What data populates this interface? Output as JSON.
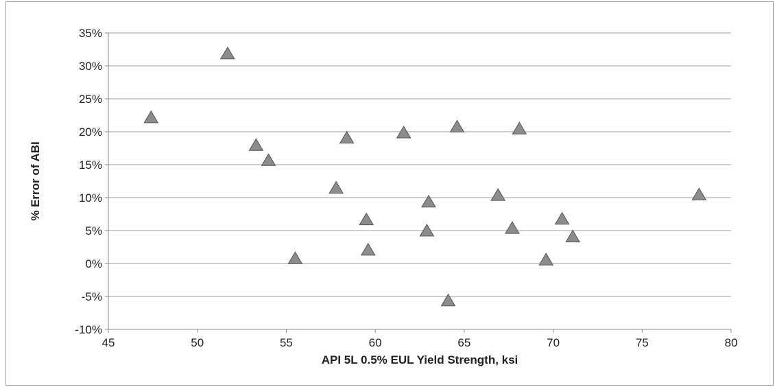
{
  "chart_data": {
    "type": "scatter",
    "title": "",
    "xlabel": "API 5L 0.5% EUL Yield Strength, ksi",
    "ylabel": "% Error of ABI",
    "xlim": [
      45,
      80
    ],
    "ylim": [
      -10,
      35
    ],
    "x_ticks": [
      "45",
      "50",
      "55",
      "60",
      "65",
      "70",
      "75",
      "80"
    ],
    "y_ticks": [
      "35%",
      "30%",
      "25%",
      "20%",
      "15%",
      "10%",
      "5%",
      "0%",
      "-5%",
      "-10%"
    ],
    "grid": true,
    "legend": "none",
    "marker": "triangle",
    "marker_color": "#8c8c8c",
    "series": [
      {
        "x": [
          47.4,
          51.7,
          53.3,
          54.0,
          55.5,
          57.8,
          58.4,
          59.5,
          59.6,
          61.6,
          62.9,
          63.0,
          64.1,
          64.6,
          66.9,
          67.7,
          68.1,
          69.6,
          70.5,
          71.1,
          78.2
        ],
        "y": [
          22.2,
          31.9,
          18.0,
          15.7,
          0.8,
          11.5,
          19.1,
          6.7,
          2.1,
          19.9,
          5.0,
          9.4,
          -5.6,
          20.8,
          10.4,
          5.4,
          20.5,
          0.6,
          6.8,
          4.1,
          10.5
        ]
      }
    ]
  }
}
